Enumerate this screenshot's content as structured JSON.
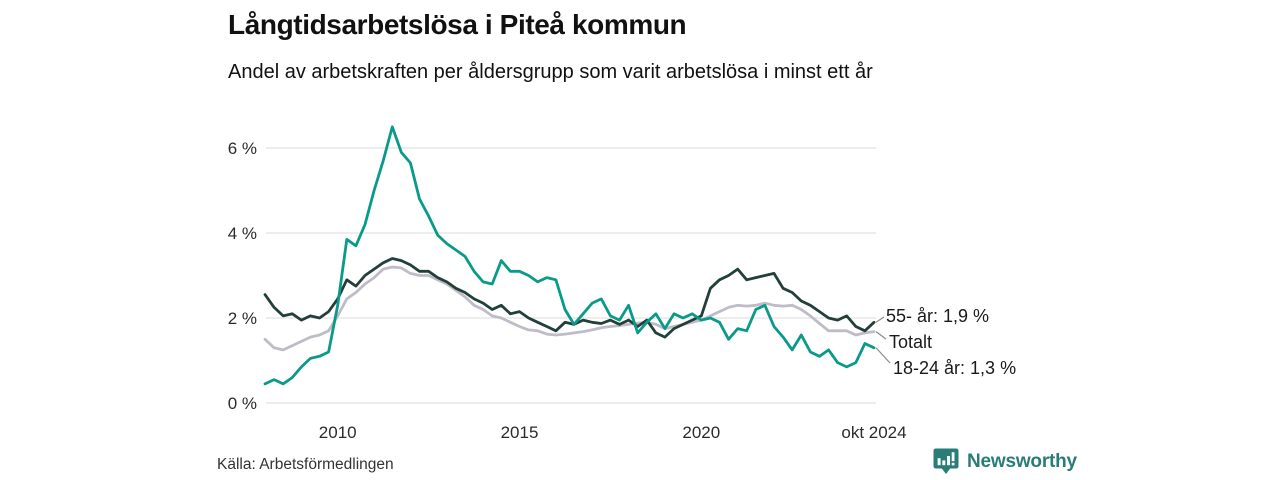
{
  "chart_data": {
    "type": "line",
    "title": "Långtidsarbetslösa i Piteå kommun",
    "subtitle": "Andel av arbetskraften per åldersgrupp som varit arbetslösa i minst ett år",
    "unit": "%",
    "x_description": "year, monthly series from 2008 to okt 2024 (sampled quarterly)",
    "x": [
      2008,
      2008.25,
      2008.5,
      2008.75,
      2009,
      2009.25,
      2009.5,
      2009.75,
      2010,
      2010.25,
      2010.5,
      2010.75,
      2011,
      2011.25,
      2011.5,
      2011.75,
      2012,
      2012.25,
      2012.5,
      2012.75,
      2013,
      2013.25,
      2013.5,
      2013.75,
      2014,
      2014.25,
      2014.5,
      2014.75,
      2015,
      2015.25,
      2015.5,
      2015.75,
      2016,
      2016.25,
      2016.5,
      2016.75,
      2017,
      2017.25,
      2017.5,
      2017.75,
      2018,
      2018.25,
      2018.5,
      2018.75,
      2019,
      2019.25,
      2019.5,
      2019.75,
      2020,
      2020.25,
      2020.5,
      2020.75,
      2021,
      2021.25,
      2021.5,
      2021.75,
      2022,
      2022.25,
      2022.5,
      2022.75,
      2023,
      2023.25,
      2023.5,
      2023.75,
      2024,
      2024.25,
      2024.5,
      2024.75
    ],
    "series": [
      {
        "name": "55- år",
        "color": "#233f3a",
        "end_label": "55- år: 1,9 %",
        "end_value": 1.9,
        "values": [
          2.55,
          2.25,
          2.05,
          2.1,
          1.95,
          2.05,
          2.0,
          2.15,
          2.45,
          2.9,
          2.75,
          3.0,
          3.15,
          3.3,
          3.4,
          3.35,
          3.25,
          3.1,
          3.1,
          2.95,
          2.85,
          2.7,
          2.6,
          2.45,
          2.35,
          2.2,
          2.3,
          2.1,
          2.15,
          2.0,
          1.9,
          1.8,
          1.7,
          1.9,
          1.85,
          1.95,
          1.9,
          1.87,
          1.95,
          1.85,
          1.95,
          1.8,
          1.95,
          1.65,
          1.55,
          1.75,
          1.85,
          1.95,
          2.05,
          2.7,
          2.9,
          3.0,
          3.15,
          2.9,
          2.95,
          3.0,
          3.05,
          2.7,
          2.6,
          2.4,
          2.3,
          2.15,
          2.0,
          1.95,
          2.05,
          1.8,
          1.7,
          1.9
        ]
      },
      {
        "name": "Totalt",
        "color": "#bfbcc8",
        "end_label": "Totalt",
        "end_value": 1.7,
        "values": [
          1.5,
          1.3,
          1.25,
          1.35,
          1.45,
          1.55,
          1.6,
          1.7,
          2.05,
          2.45,
          2.6,
          2.8,
          2.95,
          3.15,
          3.2,
          3.18,
          3.05,
          3.0,
          3.0,
          2.9,
          2.8,
          2.65,
          2.5,
          2.3,
          2.2,
          2.05,
          2.0,
          1.9,
          1.8,
          1.72,
          1.7,
          1.62,
          1.6,
          1.62,
          1.65,
          1.68,
          1.72,
          1.77,
          1.8,
          1.82,
          1.85,
          1.88,
          1.9,
          1.85,
          1.75,
          1.8,
          1.85,
          1.9,
          1.95,
          2.05,
          2.15,
          2.25,
          2.3,
          2.28,
          2.3,
          2.35,
          2.3,
          2.28,
          2.3,
          2.2,
          2.05,
          1.87,
          1.7,
          1.7,
          1.7,
          1.6,
          1.65,
          1.68
        ]
      },
      {
        "name": "18-24 år",
        "color": "#0a9a89",
        "end_label": "18-24 år: 1,3 %",
        "end_value": 1.3,
        "values": [
          0.45,
          0.55,
          0.45,
          0.6,
          0.85,
          1.05,
          1.1,
          1.2,
          2.3,
          3.85,
          3.7,
          4.2,
          5.0,
          5.7,
          6.5,
          5.9,
          5.65,
          4.8,
          4.4,
          3.95,
          3.75,
          3.6,
          3.45,
          3.1,
          2.85,
          2.8,
          3.35,
          3.1,
          3.1,
          3.0,
          2.85,
          2.95,
          2.9,
          2.2,
          1.85,
          2.1,
          2.35,
          2.45,
          2.05,
          1.95,
          2.3,
          1.65,
          1.9,
          2.1,
          1.75,
          2.1,
          2.0,
          2.1,
          1.95,
          2.0,
          1.9,
          1.5,
          1.75,
          1.7,
          2.2,
          2.3,
          1.8,
          1.55,
          1.25,
          1.6,
          1.2,
          1.1,
          1.25,
          0.95,
          0.85,
          0.95,
          1.4,
          1.3
        ]
      }
    ],
    "ylim": [
      0,
      6.9
    ],
    "yticks": [
      {
        "value": 0,
        "label": "0 %"
      },
      {
        "value": 2,
        "label": "2 %"
      },
      {
        "value": 4,
        "label": "4 %"
      },
      {
        "value": 6,
        "label": "6 %"
      }
    ],
    "xticks": [
      {
        "year": 2010,
        "label": "2010"
      },
      {
        "year": 2015,
        "label": "2015"
      },
      {
        "year": 2020,
        "label": "2020"
      },
      {
        "year": 2024.75,
        "label": "okt 2024"
      }
    ],
    "grid": "horizontal gridlines only",
    "legend": "labels at right end of lines"
  },
  "footer": {
    "source": "Källa: Arbetsförmedlingen",
    "brand": "Newsworthy"
  },
  "colors": {
    "accent_teal": "#0a9a89",
    "dark_teal": "#233f3a",
    "total_gray": "#bfbcc8",
    "grid": "#e2e2e2",
    "leader_line": "#8a8a8a",
    "brand_teal": "#2a7d77",
    "text": "#111111"
  }
}
